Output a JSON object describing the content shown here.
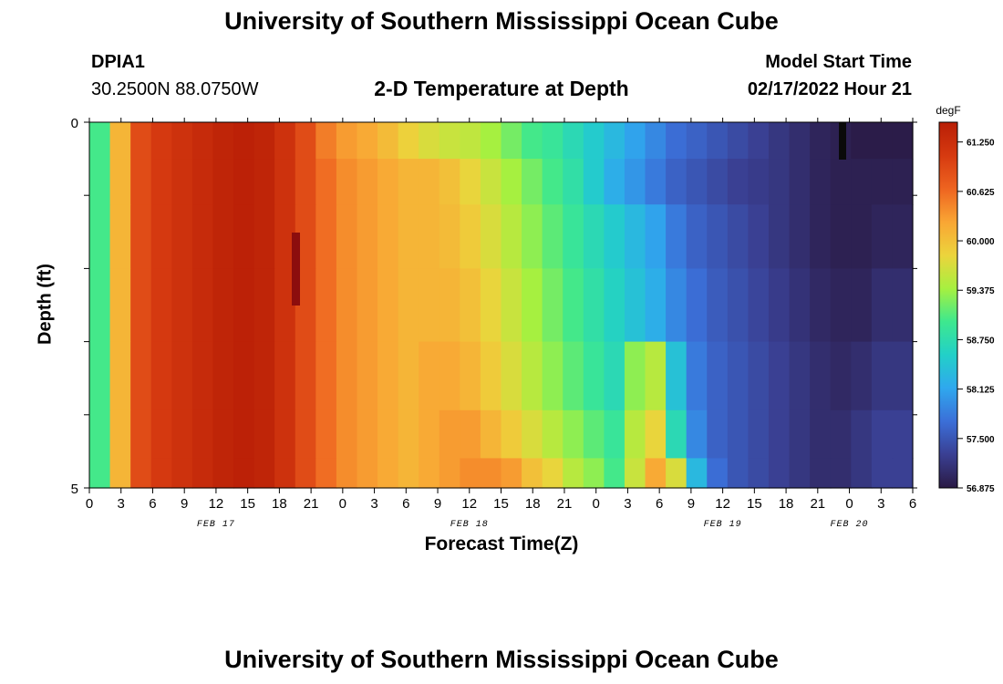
{
  "header": {
    "title": "University of Southern Mississippi Ocean Cube",
    "station_id": "DPIA1",
    "location": "30.2500N  88.0750W",
    "subtitle": "2-D Temperature at Depth",
    "start_label": "Model Start Time",
    "start_value": "02/17/2022 Hour 21"
  },
  "footer": {
    "title": "University of Southern Mississippi Ocean Cube"
  },
  "chart_data": {
    "type": "heatmap",
    "title": "2-D Temperature at Depth",
    "xlabel": "Forecast Time(Z)",
    "ylabel": "Depth (ft)",
    "x_ticks": [
      "0",
      "3",
      "6",
      "9",
      "12",
      "15",
      "18",
      "21",
      "0",
      "3",
      "6",
      "9",
      "12",
      "15",
      "18",
      "21",
      "0",
      "3",
      "6",
      "9",
      "12",
      "15",
      "18",
      "21",
      "0",
      "3",
      "6"
    ],
    "date_labels": [
      "FEB 17",
      "FEB 18",
      "FEB 19",
      "FEB 20"
    ],
    "y_ticks": [
      "0",
      "5"
    ],
    "ylim": [
      0,
      5
    ],
    "colorbar": {
      "unit": "degF",
      "ticks": [
        "61.250",
        "60.625",
        "60.000",
        "59.375",
        "58.750",
        "58.125",
        "57.500",
        "56.875"
      ],
      "range": [
        56.875,
        61.5
      ],
      "stops": [
        "#2a1a44",
        "#3a3f92",
        "#3b6fd8",
        "#2fa8ee",
        "#22d0c8",
        "#3ee88e",
        "#a6f040",
        "#ecd43c",
        "#f9a634",
        "#ee6420",
        "#d63a10",
        "#b81e06"
      ]
    },
    "time_hours": [
      0,
      2,
      4,
      6,
      8,
      10,
      12,
      14,
      16,
      18,
      20,
      22,
      24,
      26,
      28,
      30,
      32,
      34,
      36,
      38,
      40,
      42,
      44,
      46,
      48,
      50,
      52,
      54,
      56,
      58,
      60,
      62,
      64,
      66,
      68,
      70,
      72,
      74,
      76,
      78
    ],
    "depth_rows_ft": [
      0.25,
      0.75,
      1.5,
      2.5,
      3.5,
      4.375,
      4.8125
    ],
    "temperatures": [
      [
        59.0,
        60.1,
        60.9,
        61.1,
        61.2,
        61.3,
        61.4,
        61.45,
        61.4,
        61.2,
        60.9,
        60.5,
        60.3,
        60.2,
        60.05,
        59.85,
        59.7,
        59.6,
        59.55,
        59.4,
        59.2,
        59.0,
        58.9,
        58.7,
        58.5,
        58.3,
        58.1,
        57.9,
        57.7,
        57.6,
        57.5,
        57.4,
        57.3,
        57.2,
        57.1,
        57.0,
        56.95,
        56.9,
        56.9,
        56.9
      ],
      [
        59.0,
        60.1,
        60.9,
        61.1,
        61.2,
        61.3,
        61.4,
        61.45,
        61.4,
        61.2,
        60.9,
        60.6,
        60.4,
        60.3,
        60.2,
        60.1,
        60.1,
        60.0,
        59.8,
        59.6,
        59.4,
        59.2,
        59.0,
        58.8,
        58.5,
        58.2,
        58.0,
        57.8,
        57.6,
        57.5,
        57.4,
        57.3,
        57.25,
        57.2,
        57.1,
        57.0,
        56.95,
        56.95,
        56.95,
        56.95
      ],
      [
        59.0,
        60.1,
        60.9,
        61.1,
        61.2,
        61.3,
        61.4,
        61.45,
        61.4,
        61.2,
        60.9,
        60.6,
        60.4,
        60.3,
        60.2,
        60.1,
        60.1,
        60.05,
        59.9,
        59.7,
        59.5,
        59.3,
        59.1,
        58.9,
        58.7,
        58.5,
        58.3,
        58.1,
        57.8,
        57.6,
        57.5,
        57.4,
        57.3,
        57.2,
        57.1,
        57.0,
        56.95,
        56.95,
        57.0,
        57.0
      ],
      [
        59.0,
        60.1,
        60.9,
        61.1,
        61.2,
        61.3,
        61.4,
        61.45,
        61.4,
        61.2,
        60.9,
        60.6,
        60.4,
        60.3,
        60.2,
        60.1,
        60.1,
        60.1,
        60.0,
        59.8,
        59.6,
        59.4,
        59.2,
        59.0,
        58.8,
        58.6,
        58.4,
        58.2,
        57.9,
        57.7,
        57.55,
        57.45,
        57.35,
        57.25,
        57.15,
        57.05,
        57.0,
        57.0,
        57.1,
        57.1
      ],
      [
        59.0,
        60.1,
        60.9,
        61.1,
        61.2,
        61.3,
        61.4,
        61.45,
        61.4,
        61.2,
        60.9,
        60.6,
        60.4,
        60.3,
        60.2,
        60.1,
        60.2,
        60.2,
        60.1,
        59.9,
        59.7,
        59.5,
        59.3,
        59.1,
        58.9,
        58.7,
        59.3,
        59.5,
        58.4,
        57.8,
        57.6,
        57.5,
        57.4,
        57.3,
        57.2,
        57.1,
        57.05,
        57.1,
        57.2,
        57.2
      ],
      [
        59.0,
        60.1,
        60.9,
        61.1,
        61.2,
        61.3,
        61.4,
        61.45,
        61.4,
        61.2,
        60.9,
        60.6,
        60.4,
        60.3,
        60.2,
        60.1,
        60.2,
        60.3,
        60.3,
        60.1,
        59.9,
        59.7,
        59.5,
        59.3,
        59.1,
        58.9,
        59.5,
        59.8,
        58.7,
        57.9,
        57.6,
        57.5,
        57.4,
        57.3,
        57.2,
        57.1,
        57.1,
        57.2,
        57.3,
        57.3
      ],
      [
        59.0,
        60.1,
        60.9,
        61.1,
        61.2,
        61.3,
        61.4,
        61.45,
        61.4,
        61.2,
        60.9,
        60.6,
        60.4,
        60.3,
        60.2,
        60.1,
        60.2,
        60.3,
        60.4,
        60.4,
        60.3,
        60.0,
        59.8,
        59.5,
        59.3,
        59.0,
        59.6,
        60.2,
        59.7,
        58.3,
        57.7,
        57.5,
        57.4,
        57.3,
        57.2,
        57.1,
        57.1,
        57.2,
        57.3,
        57.3
      ]
    ]
  }
}
